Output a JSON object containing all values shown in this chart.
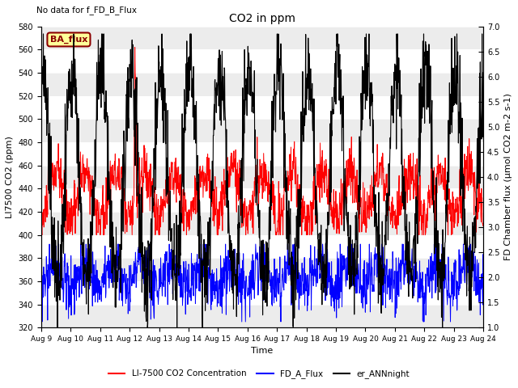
{
  "title": "CO2 in ppm",
  "top_left_text": "No data for f_FD_B_Flux",
  "ba_flux_label": "BA_flux",
  "ylabel_left": "LI7500 CO2 (ppm)",
  "ylabel_right": "FD Chamber flux (μmol CO2 m-2 s-1)",
  "xlabel": "Time",
  "ylim_left": [
    320,
    580
  ],
  "ylim_right": [
    1.0,
    7.0
  ],
  "yticks_left": [
    320,
    340,
    360,
    380,
    400,
    420,
    440,
    460,
    480,
    500,
    520,
    540,
    560,
    580
  ],
  "yticks_right": [
    1.0,
    1.5,
    2.0,
    2.5,
    3.0,
    3.5,
    4.0,
    4.5,
    5.0,
    5.5,
    6.0,
    6.5,
    7.0
  ],
  "xtick_labels": [
    "Aug 9",
    "Aug 10",
    "Aug 11",
    "Aug 12",
    "Aug 13",
    "Aug 14",
    "Aug 15",
    "Aug 16",
    "Aug 17",
    "Aug 18",
    "Aug 19",
    "Aug 20",
    "Aug 21",
    "Aug 22",
    "Aug 23",
    "Aug 24"
  ],
  "legend_entries": [
    {
      "label": "LI-7500 CO2 Concentration",
      "color": "#FF0000"
    },
    {
      "label": "FD_A_Flux",
      "color": "#0000FF"
    },
    {
      "label": "er_ANNnight",
      "color": "#000000"
    }
  ],
  "colors": {
    "red_line": "#FF0000",
    "blue_line": "#0000FF",
    "black_line": "#000000",
    "ba_flux_bg": "#FFFF99",
    "ba_flux_border": "#8B0000",
    "ba_flux_text": "#8B0000",
    "shading_light": "#ECECEC",
    "shading_dark": "#FFFFFF"
  },
  "n_days": 15,
  "pts_per_day": 96,
  "red_seed": 10,
  "blue_seed": 20,
  "black_seed": 30
}
